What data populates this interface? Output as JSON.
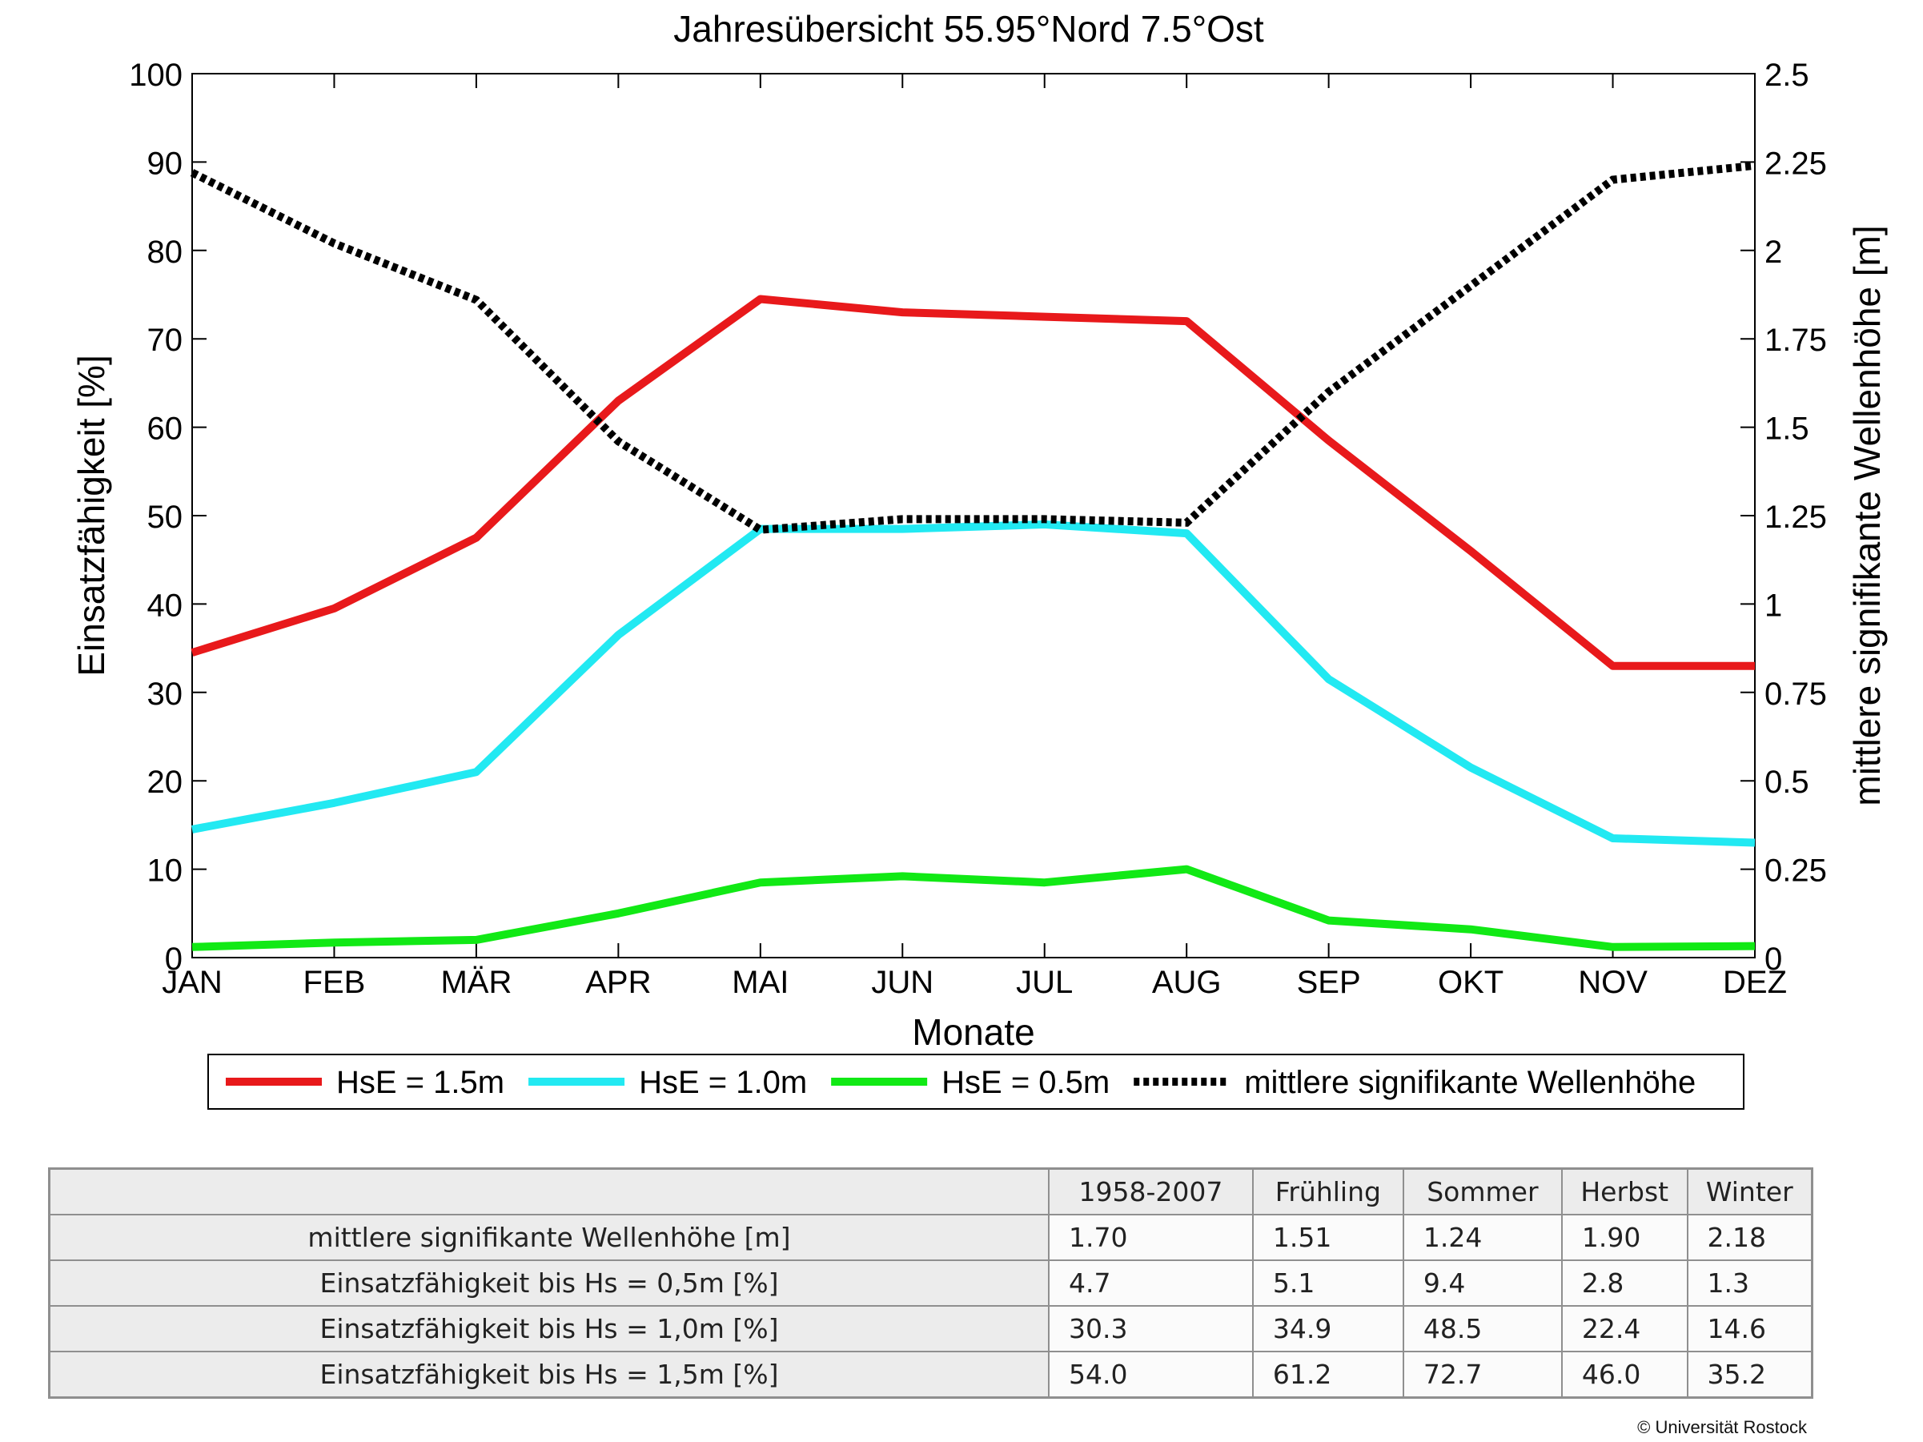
{
  "chart_data": {
    "type": "line",
    "title": "Jahresübersicht  55.95°Nord  7.5°Ost",
    "xlabel": "Monate",
    "ylabel": "Einsatzfähigkeit [%]",
    "y2label": "mittlere signifikante Wellenhöhe [m]",
    "categories": [
      "JAN",
      "FEB",
      "MÄR",
      "APR",
      "MAI",
      "JUN",
      "JUL",
      "AUG",
      "SEP",
      "OKT",
      "NOV",
      "DEZ"
    ],
    "ylim": [
      0,
      100
    ],
    "yticks": [
      0,
      10,
      20,
      30,
      40,
      50,
      60,
      70,
      80,
      90,
      100
    ],
    "y2lim": [
      0,
      2.5
    ],
    "y2ticks": [
      "0",
      "0.25",
      "0.5",
      "0.75",
      "1",
      "1.25",
      "1.5",
      "1.75",
      "2",
      "2.25",
      "2.5"
    ],
    "grid": false,
    "legend_position": "bottom",
    "series": [
      {
        "name": "HsE = 1.5m",
        "axis": "left",
        "color": "#e8191b",
        "style": "solid",
        "values": [
          34.5,
          39.5,
          47.5,
          63,
          74.5,
          73,
          72.5,
          72,
          58.5,
          46,
          33,
          33
        ]
      },
      {
        "name": "HsE = 1.0m",
        "axis": "left",
        "color": "#22e9f2",
        "style": "solid",
        "values": [
          14.5,
          17.5,
          21,
          36.5,
          48.5,
          48.5,
          49,
          48,
          31.5,
          21.5,
          13.5,
          13
        ]
      },
      {
        "name": "HsE = 0.5m",
        "axis": "left",
        "color": "#11e915",
        "style": "solid",
        "values": [
          1.2,
          1.7,
          2,
          5,
          8.5,
          9.2,
          8.5,
          10,
          4.2,
          3.2,
          1.2,
          1.3
        ]
      },
      {
        "name": "mittlere signifikante Wellenhöhe",
        "axis": "right",
        "color": "#000000",
        "style": "dotted",
        "values": [
          2.22,
          2.02,
          1.86,
          1.46,
          1.21,
          1.24,
          1.24,
          1.23,
          1.6,
          1.9,
          2.2,
          2.24
        ]
      }
    ]
  },
  "table": {
    "headers": [
      "1958-2007",
      "Frühling",
      "Sommer",
      "Herbst",
      "Winter"
    ],
    "rows": [
      {
        "label": "mittlere signifikante Wellenhöhe [m]",
        "values": [
          "1.70",
          "1.51",
          "1.24",
          "1.90",
          "2.18"
        ]
      },
      {
        "label": "Einsatzfähigkeit bis Hs = 0,5m [%]",
        "values": [
          "4.7",
          "5.1",
          "9.4",
          "2.8",
          "1.3"
        ]
      },
      {
        "label": "Einsatzfähigkeit bis Hs = 1,0m [%]",
        "values": [
          "30.3",
          "34.9",
          "48.5",
          "22.4",
          "14.6"
        ]
      },
      {
        "label": "Einsatzfähigkeit bis Hs = 1,5m [%]",
        "values": [
          "54.0",
          "61.2",
          "72.7",
          "46.0",
          "35.2"
        ]
      }
    ]
  },
  "copyright": "© Universität Rostock"
}
